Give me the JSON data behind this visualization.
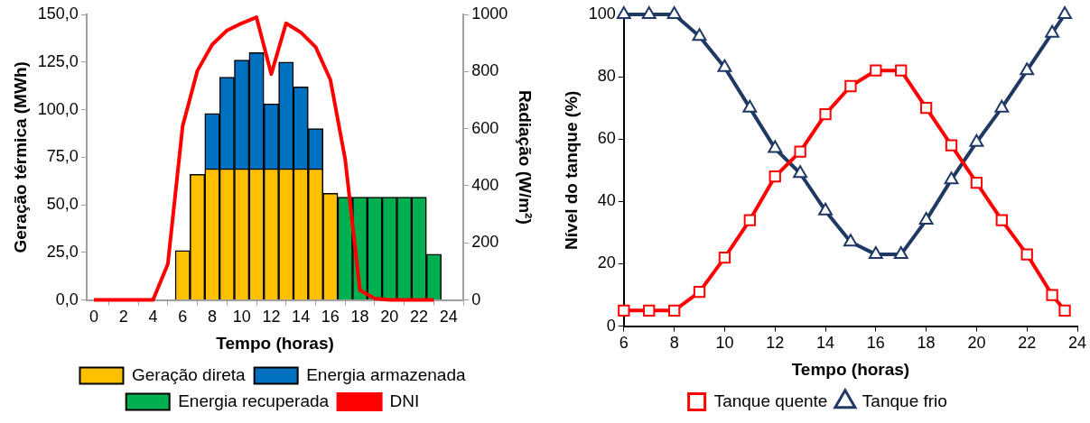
{
  "chart_data": [
    {
      "type": "bar",
      "stacked": true,
      "xlabel": "Tempo (horas)",
      "ylabel": "Geração térmica (MWh)",
      "y2label": "Radiação (W/m²)",
      "legend": "bottom",
      "grid": false,
      "xlim": [
        -0.5,
        25
      ],
      "xticks": [
        0,
        2,
        4,
        6,
        8,
        10,
        12,
        14,
        16,
        18,
        20,
        22,
        24
      ],
      "ylim": [
        0,
        150
      ],
      "yticks": [
        {
          "value": 0,
          "label": "0,0"
        },
        {
          "value": 25,
          "label": "25,0"
        },
        {
          "value": 50,
          "label": "50,0"
        },
        {
          "value": 75,
          "label": "75,0"
        },
        {
          "value": 100,
          "label": "100,0"
        },
        {
          "value": 125,
          "label": "125,0"
        },
        {
          "value": 150,
          "label": "150,0"
        }
      ],
      "x": [
        0,
        1,
        2,
        3,
        4,
        5,
        6,
        7,
        8,
        9,
        10,
        11,
        12,
        13,
        14,
        15,
        16,
        17,
        18,
        19,
        20,
        21,
        22,
        23
      ],
      "y2lim": [
        0,
        1000
      ],
      "y2ticks": [
        0,
        200,
        400,
        600,
        800,
        1000
      ],
      "series": [
        {
          "name": "Geração direta",
          "color": "#ffc000",
          "values": [
            null,
            null,
            null,
            null,
            null,
            null,
            26,
            66,
            69,
            69,
            69,
            69,
            69,
            69,
            69,
            69,
            56,
            null,
            null,
            null,
            null,
            null,
            null,
            null
          ]
        },
        {
          "name": "Energia armazenada",
          "color": "#0070c0",
          "values": [
            null,
            null,
            null,
            null,
            null,
            null,
            null,
            null,
            29,
            48,
            57,
            61,
            34,
            56,
            43,
            21,
            null,
            null,
            null,
            null,
            null,
            null,
            null,
            null
          ]
        },
        {
          "name": "Energia recuperada",
          "color": "#00b050",
          "values": [
            null,
            null,
            null,
            null,
            null,
            null,
            null,
            null,
            null,
            null,
            null,
            null,
            null,
            null,
            null,
            null,
            null,
            54,
            54,
            54,
            54,
            54,
            54,
            24
          ]
        },
        {
          "name": "DNI",
          "type": "line",
          "axis": "y2",
          "color": "#ff0000",
          "values": [
            0,
            0,
            0,
            0,
            0,
            126,
            608,
            803,
            894,
            944,
            969,
            990,
            791,
            969,
            937,
            886,
            771,
            493,
            34,
            5,
            0,
            0,
            0,
            0
          ]
        }
      ]
    },
    {
      "type": "line",
      "xlabel": "Tempo (horas)",
      "ylabel": "Nível do tanque (%)",
      "legend": "bottom",
      "grid": false,
      "xlim": [
        6,
        24
      ],
      "xticks": [
        6,
        8,
        10,
        12,
        14,
        16,
        18,
        20,
        22,
        24
      ],
      "ylim": [
        0,
        100
      ],
      "yticks": [
        0,
        20,
        40,
        60,
        80,
        100
      ],
      "x": [
        6,
        7,
        8,
        9,
        10,
        11,
        12,
        13,
        14,
        15,
        16,
        17,
        18,
        19,
        20,
        21,
        22,
        23,
        23.5
      ],
      "series": [
        {
          "name": "Tanque quente",
          "color": "#ff0000",
          "marker": "square",
          "values": [
            5,
            5,
            5,
            11,
            22,
            34,
            48,
            56,
            68,
            77,
            82,
            82,
            70,
            58,
            46,
            34,
            23,
            10,
            5
          ]
        },
        {
          "name": "Tanque frio",
          "color": "#1f3864",
          "marker": "triangle",
          "values": [
            100,
            100,
            100,
            93,
            83,
            70,
            57,
            49,
            37,
            27,
            23,
            23,
            34,
            47,
            59,
            70,
            82,
            94,
            100
          ]
        }
      ]
    }
  ]
}
